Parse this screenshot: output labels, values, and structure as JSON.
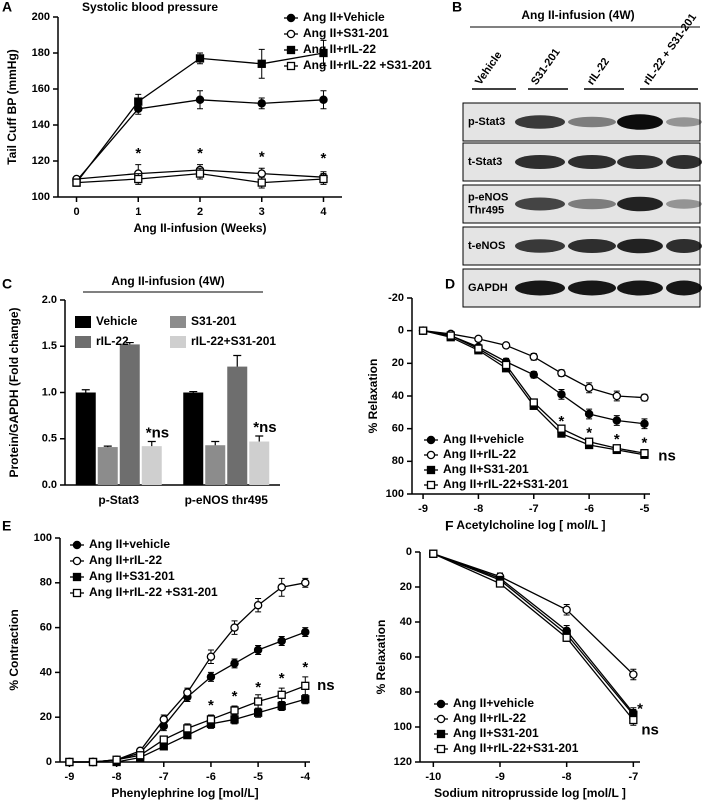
{
  "chart_data": [
    {
      "type": "line",
      "label": "A",
      "title": "Systolic blood pressure",
      "xlabel": "Ang II-infusion (Weeks)",
      "ylabel": "Tail Cuff BP (mmHg)",
      "x": [
        0,
        1,
        2,
        3,
        4
      ],
      "xlim": [
        -0.3,
        4.3
      ],
      "xticks": [
        0,
        1,
        2,
        3,
        4
      ],
      "ylim": [
        100,
        200
      ],
      "yticks": [
        100,
        120,
        140,
        160,
        180,
        200
      ],
      "series": [
        {
          "name": "Ang II+Vehicle",
          "color": "#000000",
          "marker": "circle",
          "filled": true,
          "values": [
            109,
            149,
            154,
            152,
            154
          ],
          "errors": [
            1,
            3,
            5,
            3,
            5
          ]
        },
        {
          "name": "Ang II+S31-201",
          "color": "#000000",
          "marker": "circle",
          "filled": false,
          "values": [
            110,
            113,
            115,
            113,
            111
          ],
          "errors": [
            1,
            5,
            3,
            3,
            3
          ]
        },
        {
          "name": "Ang II+rIL-22",
          "color": "#000000",
          "marker": "square",
          "filled": true,
          "values": [
            108,
            153,
            177,
            174,
            180
          ],
          "errors": [
            1,
            4,
            3,
            8,
            7
          ]
        },
        {
          "name": "Ang II+rIL-22 +S31-201",
          "color": "#000000",
          "marker": "square",
          "filled": false,
          "values": [
            108,
            110,
            113,
            108,
            110
          ],
          "errors": [
            1,
            3,
            3,
            3,
            3
          ]
        }
      ],
      "annotations": [
        {
          "text": "*",
          "x": 1,
          "y": 124
        },
        {
          "text": "*",
          "x": 2,
          "y": 124
        },
        {
          "text": "*",
          "x": 3,
          "y": 122
        },
        {
          "text": "*",
          "x": 4,
          "y": 121
        }
      ]
    },
    {
      "type": "bar",
      "label": "C",
      "title": "Ang II-infusion (4W)",
      "ylabel": "Protein/GAPDH (Fold change)",
      "categories": [
        "p-Stat3",
        "p-eNOS thr495"
      ],
      "ylim": [
        0,
        2
      ],
      "yticks": [
        {
          "value": 0,
          "label": "0.0"
        },
        0.5,
        {
          "value": 1,
          "label": "1.0"
        },
        1.5,
        {
          "value": 2,
          "label": "2.0"
        }
      ],
      "series": [
        {
          "name": "Vehicle",
          "color": "#000000",
          "values": [
            1.0,
            1.0
          ],
          "errors": [
            0.03,
            0.01
          ]
        },
        {
          "name": "S31-201",
          "color": "#8c8c8c",
          "values": [
            0.41,
            0.43
          ],
          "errors": [
            0.01,
            0.04
          ]
        },
        {
          "name": "rIL-22",
          "color": "#6e6e6e",
          "values": [
            1.52,
            1.28
          ],
          "errors": [
            0.02,
            0.12
          ]
        },
        {
          "name": "rIL-22+S31-201",
          "color": "#cfcfcf",
          "values": [
            0.42,
            0.47
          ],
          "errors": [
            0.05,
            0.06
          ],
          "annotations": [
            "*ns",
            "*ns"
          ]
        }
      ]
    },
    {
      "type": "line",
      "label": "D",
      "xlabel": "Acetylcholine log [ mol/L ]",
      "ylabel": "% Relaxation",
      "x": [
        -9,
        -8.5,
        -8,
        -7.5,
        -7,
        -6.5,
        -6,
        -5.5,
        -5
      ],
      "xlim": [
        -9.2,
        -4.9
      ],
      "xticks": [
        -9,
        -8,
        -7,
        -6,
        -5
      ],
      "ylim": [
        100,
        -20
      ],
      "yticks": [
        -20,
        0,
        20,
        40,
        60,
        80,
        100
      ],
      "series": [
        {
          "name": "Ang II+vehicle",
          "color": "#000000",
          "marker": "circle",
          "filled": true,
          "values": [
            0,
            3,
            10,
            19,
            27,
            39,
            51,
            55,
            57
          ],
          "errors": [
            0,
            1,
            1,
            2,
            2,
            3,
            3,
            3,
            3
          ]
        },
        {
          "name": "Ang II+rIL-22",
          "color": "#000000",
          "marker": "circle",
          "filled": false,
          "values": [
            0,
            2,
            5,
            9,
            16,
            26,
            35,
            40,
            41
          ],
          "errors": [
            0,
            1,
            1,
            1,
            2,
            2,
            3,
            3,
            2
          ]
        },
        {
          "name": "Ang II+S31-201",
          "color": "#000000",
          "marker": "square",
          "filled": true,
          "values": [
            0,
            4,
            12,
            23,
            46,
            63,
            70,
            73,
            76
          ],
          "errors": [
            0,
            1,
            1,
            2,
            2,
            2,
            2,
            2,
            2
          ]
        },
        {
          "name": "Ang II+rIL-22+S31-201",
          "color": "#000000",
          "marker": "square",
          "filled": false,
          "values": [
            0,
            3,
            11,
            21,
            44,
            60,
            68,
            72,
            75
          ],
          "errors": [
            0,
            1,
            1,
            2,
            2,
            2,
            2,
            2,
            2
          ]
        }
      ],
      "annotations": [
        {
          "text": "*",
          "x": -6.5,
          "y": 56
        },
        {
          "text": "*",
          "x": -6,
          "y": 63
        },
        {
          "text": "*",
          "x": -5.5,
          "y": 67
        },
        {
          "text": "*",
          "x": -5,
          "y": 69
        },
        {
          "text": "ns",
          "x": -4.75,
          "y": 77
        }
      ]
    },
    {
      "type": "line",
      "label": "E",
      "xlabel": "Phenylephrine log [mol/L]",
      "ylabel": "% Contraction",
      "x": [
        -9,
        -8.5,
        -8,
        -7.5,
        -7,
        -6.5,
        -6,
        -5.5,
        -5,
        -4.5,
        -4
      ],
      "xlim": [
        -9.2,
        -3.9
      ],
      "xticks": [
        -9,
        -8,
        -7,
        -6,
        -5,
        -4
      ],
      "ylim": [
        0,
        100
      ],
      "yticks": [
        0,
        20,
        40,
        60,
        80,
        100
      ],
      "series": [
        {
          "name": "Ang II+vehicle",
          "color": "#000000",
          "marker": "circle",
          "filled": true,
          "values": [
            0,
            0,
            1,
            4,
            16,
            29,
            38,
            44,
            50,
            54,
            58
          ],
          "errors": [
            0,
            0,
            1,
            1,
            2,
            2,
            2,
            2,
            2,
            2,
            2
          ]
        },
        {
          "name": "Ang II+rIL-22",
          "color": "#000000",
          "marker": "circle",
          "filled": false,
          "values": [
            0,
            0,
            1,
            5,
            19,
            31,
            47,
            60,
            70,
            78,
            80
          ],
          "errors": [
            0,
            0,
            1,
            1,
            2,
            2,
            3,
            3,
            3,
            4,
            2
          ]
        },
        {
          "name": "Ang II+S31-201",
          "color": "#000000",
          "marker": "square",
          "filled": true,
          "values": [
            0,
            0,
            0,
            2,
            7,
            12,
            17,
            19,
            22,
            25,
            28
          ],
          "errors": [
            0,
            0,
            1,
            1,
            1,
            1,
            2,
            2,
            2,
            2,
            2
          ]
        },
        {
          "name": "Ang II+rIL-22 +S31-201",
          "color": "#000000",
          "marker": "square",
          "filled": false,
          "values": [
            0,
            0,
            1,
            3,
            10,
            15,
            19,
            23,
            27,
            30,
            34
          ],
          "errors": [
            0,
            0,
            1,
            1,
            1,
            2,
            2,
            2,
            3,
            3,
            4
          ]
        }
      ],
      "annotations": [
        {
          "text": "*",
          "x": -6,
          "y": 25
        },
        {
          "text": "*",
          "x": -5.5,
          "y": 29
        },
        {
          "text": "*",
          "x": -5,
          "y": 33
        },
        {
          "text": "*",
          "x": -4.5,
          "y": 37
        },
        {
          "text": "*",
          "x": -4,
          "y": 42
        },
        {
          "text": "ns",
          "x": -3.75,
          "y": 34
        }
      ]
    },
    {
      "type": "line",
      "label": "F",
      "xlabel": "Sodium nitroprusside log [mol/L ]",
      "ylabel": "% Relaxation",
      "x": [
        -10,
        -9,
        -8,
        -7
      ],
      "xlim": [
        -10.2,
        -6.9
      ],
      "xticks": [
        -10,
        -9,
        -8,
        -7
      ],
      "ylim": [
        120,
        0
      ],
      "yticks": [
        0,
        20,
        40,
        60,
        80,
        100,
        120
      ],
      "series": [
        {
          "name": "Ang II+vehicle",
          "color": "#000000",
          "marker": "circle",
          "filled": true,
          "values": [
            1,
            15,
            45,
            92
          ],
          "errors": [
            0,
            2,
            3,
            3
          ]
        },
        {
          "name": "Ang II+rIL-22",
          "color": "#000000",
          "marker": "circle",
          "filled": false,
          "values": [
            1,
            14,
            33,
            70
          ],
          "errors": [
            0,
            2,
            3,
            3
          ]
        },
        {
          "name": "Ang II+S31-201",
          "color": "#000000",
          "marker": "square",
          "filled": true,
          "values": [
            1,
            16,
            47,
            93
          ],
          "errors": [
            0,
            2,
            2,
            3
          ]
        },
        {
          "name": "Ang II+rIL-22+S31-201",
          "color": "#000000",
          "marker": "square",
          "filled": false,
          "values": [
            1,
            18,
            49,
            96
          ],
          "errors": [
            0,
            2,
            2,
            3
          ]
        }
      ],
      "annotations": [
        {
          "text": "*",
          "x": -6.9,
          "y": 90
        },
        {
          "text": "ns",
          "x": -6.88,
          "y": 102
        }
      ]
    }
  ],
  "blot": {
    "label": "B",
    "title": "Ang II-infusion (4W)",
    "lanes": [
      "Vehicle",
      "S31-201",
      "rIL-22",
      "rIL-22 + S31-201"
    ],
    "rows": [
      "p-Stat3",
      "t-Stat3",
      "p-eNOS Thr495",
      "t-eNOS",
      "GAPDH"
    ]
  }
}
